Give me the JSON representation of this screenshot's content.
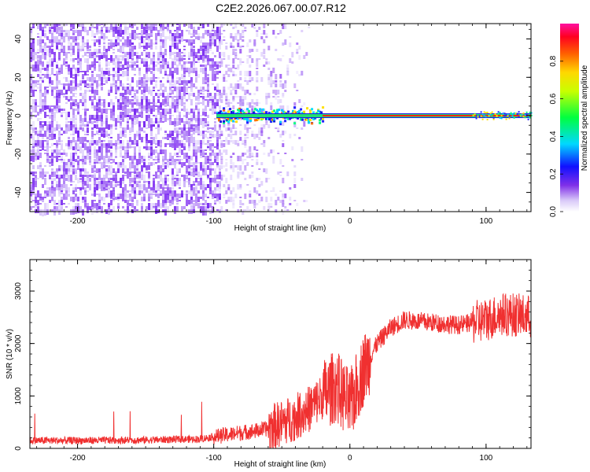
{
  "title": "C2E2.2026.067.00.07.R12",
  "chart_data": [
    {
      "type": "heatmap",
      "xlabel": "Height of straight line (km)",
      "ylabel": "Frequency (Hz)",
      "xlim": [
        -235,
        133
      ],
      "ylim": [
        -50,
        48
      ],
      "xticks": [
        -200,
        -100,
        0,
        100
      ],
      "yticks": [
        -40,
        -20,
        0,
        20,
        40
      ],
      "colorbar": {
        "label": "Normalized spectral amplitude",
        "ticks": [
          "0.0",
          "0.2",
          "0.4",
          "0.6",
          "0.8"
        ],
        "range": [
          0,
          1
        ]
      },
      "features": {
        "scattered_noise_region_km": [
          -235,
          -95
        ],
        "sparse_noise_region_km": [
          -95,
          -30
        ],
        "broadened_signal_km": [
          -98,
          -20
        ],
        "narrow_carrier_km": [
          -20,
          133
        ],
        "carrier_frequency_hz": 0
      },
      "grid": false
    },
    {
      "type": "line",
      "xlabel": "Height of straight line (km)",
      "ylabel": "SNR (10 * v/v)",
      "xlim": [
        -235,
        133
      ],
      "ylim": [
        0,
        3600
      ],
      "xticks": [
        -200,
        -100,
        0,
        100
      ],
      "yticks": [
        0,
        1000,
        2000,
        3000
      ],
      "series": [
        {
          "color": "#f03030",
          "x": [
            -235,
            -200,
            -150,
            -110,
            -100,
            -90,
            -80,
            -70,
            -60,
            -50,
            -40,
            -30,
            -20,
            -10,
            0,
            10,
            20,
            30,
            40,
            60,
            80,
            100,
            110,
            120,
            133
          ],
          "y": [
            150,
            150,
            160,
            180,
            220,
            260,
            300,
            330,
            380,
            480,
            600,
            750,
            1000,
            1200,
            800,
            1500,
            2000,
            2300,
            2450,
            2400,
            2350,
            2450,
            2550,
            2550,
            2500
          ]
        }
      ],
      "grid": false
    }
  ]
}
